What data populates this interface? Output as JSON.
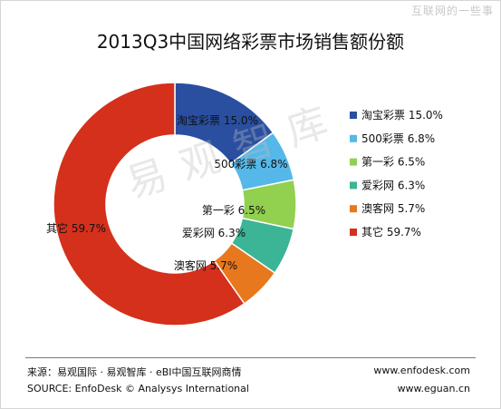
{
  "watermark_top": "互联网的一些事",
  "watermark_center": "易观智库",
  "chart_data": {
    "type": "pie",
    "title": "2013Q3中国网络彩票市场销售额份额",
    "categories": [
      "淘宝彩票",
      "500彩票",
      "第一彩",
      "爱彩网",
      "澳客网",
      "其它"
    ],
    "values": [
      15.0,
      6.8,
      6.5,
      6.3,
      5.7,
      59.7
    ],
    "value_labels": [
      "15.0%",
      "6.8%",
      "6.5%",
      "6.3%",
      "5.7%",
      "59.7%"
    ],
    "colors": [
      "#2a4fa0",
      "#56b8e8",
      "#92d050",
      "#3cb496",
      "#e8781e",
      "#d4301c"
    ],
    "donut": true,
    "legend": "right"
  },
  "footer": {
    "source_cn": "来源：易观国际 · 易观智库 · eBI中国互联网商情",
    "source_en": "SOURCE: EnfoDesk © Analysys International",
    "url1": "www.enfodesk.com",
    "url2": "www.eguan.cn"
  }
}
